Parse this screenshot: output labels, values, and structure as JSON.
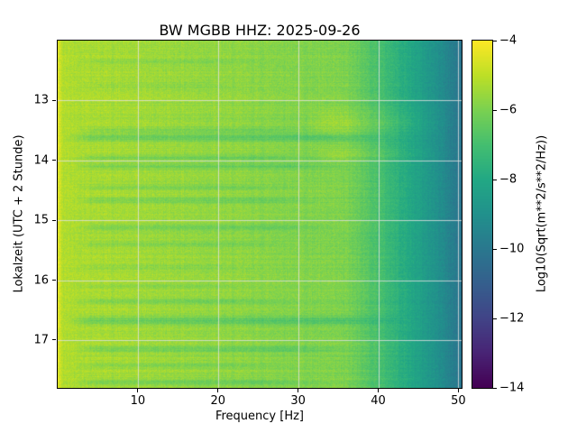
{
  "title": "BW MGBB  HHZ: 2025-09-26",
  "chart_data": {
    "type": "heatmap",
    "subtype": "spectrogram",
    "title": "BW MGBB  HHZ: 2025-09-26",
    "xlabel": "Frequency [Hz]",
    "ylabel": "Lokalzeit (UTC + 2 Stunde)",
    "colorbar_label": "Log10(Sqrt(m**2/s**2/Hz))",
    "colormap": "viridis",
    "grid": true,
    "xlim": [
      0,
      50.4
    ],
    "ylim_top": 12.0,
    "ylim_bottom": 17.8,
    "clim": [
      -14,
      -4
    ],
    "xticks": [
      10,
      20,
      30,
      40,
      50
    ],
    "yticks": [
      13,
      14,
      15,
      16,
      17
    ],
    "colorbar_ticks": [
      -4,
      -6,
      -8,
      -10,
      -12,
      -14
    ],
    "colorbar_tick_labels": [
      "−4",
      "−6",
      "−8",
      "−10",
      "−12",
      "−14"
    ],
    "frequency_profile": [
      [
        0.0,
        -4.4
      ],
      [
        0.7,
        -5.2
      ],
      [
        10,
        -5.42
      ],
      [
        20,
        -5.64
      ],
      [
        30,
        -5.86
      ],
      [
        36,
        -6.0
      ],
      [
        40,
        -6.9
      ],
      [
        45,
        -8.3
      ],
      [
        48,
        -9.2
      ],
      [
        50.4,
        -10.2
      ]
    ],
    "event_bands": [
      {
        "t": 12.35,
        "w": 0.04,
        "s": 0.35,
        "f0": 3,
        "f1": 25
      },
      {
        "t": 12.75,
        "w": 0.04,
        "s": 0.3,
        "f0": 3,
        "f1": 22
      },
      {
        "t": 13.5,
        "w": 0.05,
        "s": 0.5,
        "f0": 3,
        "f1": 30
      },
      {
        "t": 13.62,
        "w": 0.06,
        "s": 0.85,
        "f0": 2,
        "f1": 38
      },
      {
        "t": 13.95,
        "w": 0.05,
        "s": 0.55,
        "f0": 3,
        "f1": 30
      },
      {
        "t": 14.1,
        "w": 0.05,
        "s": 0.6,
        "f0": 3,
        "f1": 34
      },
      {
        "t": 14.45,
        "w": 0.05,
        "s": 0.5,
        "f0": 3,
        "f1": 28
      },
      {
        "t": 14.67,
        "w": 0.05,
        "s": 0.6,
        "f0": 3,
        "f1": 30
      },
      {
        "t": 15.12,
        "w": 0.06,
        "s": 0.6,
        "f0": 3,
        "f1": 32
      },
      {
        "t": 15.4,
        "w": 0.04,
        "s": 0.45,
        "f0": 3,
        "f1": 26
      },
      {
        "t": 15.78,
        "w": 0.04,
        "s": 0.3,
        "f0": 3,
        "f1": 22
      },
      {
        "t": 16.1,
        "w": 0.04,
        "s": 0.3,
        "f0": 3,
        "f1": 22
      },
      {
        "t": 16.35,
        "w": 0.05,
        "s": 0.45,
        "f0": 3,
        "f1": 26
      },
      {
        "t": 16.68,
        "w": 0.07,
        "s": 0.85,
        "f0": 2,
        "f1": 40
      },
      {
        "t": 17.15,
        "w": 0.06,
        "s": 0.65,
        "f0": 3,
        "f1": 34
      },
      {
        "t": 17.42,
        "w": 0.04,
        "s": 0.45,
        "f0": 3,
        "f1": 26
      },
      {
        "t": 17.7,
        "w": 0.06,
        "s": 0.55,
        "f0": 3,
        "f1": 30
      },
      {
        "t": 13.35,
        "w": 0.18,
        "s": -0.45,
        "f0": 32,
        "f1": 46
      },
      {
        "t": 13.9,
        "w": 0.12,
        "s": -0.35,
        "f0": 33,
        "f1": 45
      }
    ],
    "noise": {
      "seed": 42,
      "cell": 0.28,
      "row": 0.16,
      "col": 0.12
    }
  }
}
